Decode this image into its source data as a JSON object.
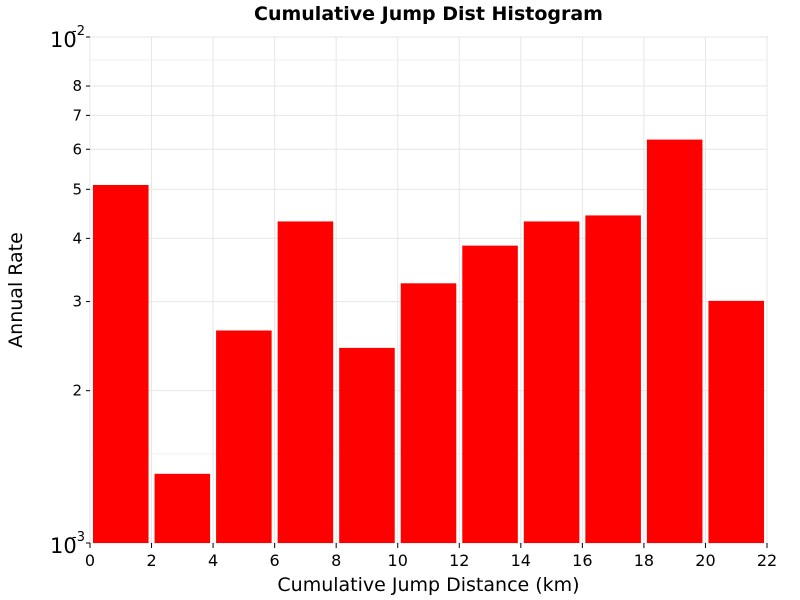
{
  "chart_data": {
    "type": "bar",
    "title": "Cumulative Jump Dist Histogram",
    "xlabel": "Cumulative Jump Distance (km)",
    "ylabel": "Annual Rate",
    "x_scale": "linear",
    "y_scale": "log",
    "xlim": [
      0,
      22
    ],
    "ylim": [
      0.001,
      0.01
    ],
    "x_ticks": [
      "0",
      "2",
      "4",
      "6",
      "8",
      "10",
      "12",
      "14",
      "16",
      "18",
      "20",
      "22"
    ],
    "y_ticks": [
      {
        "value": 0.001,
        "base": "10",
        "exp": "-3"
      },
      {
        "value": 0.002,
        "label": "2"
      },
      {
        "value": 0.003,
        "label": "3"
      },
      {
        "value": 0.004,
        "label": "4"
      },
      {
        "value": 0.005,
        "label": "5"
      },
      {
        "value": 0.006,
        "label": "6"
      },
      {
        "value": 0.007,
        "label": "7"
      },
      {
        "value": 0.008,
        "label": "8"
      },
      {
        "value": 0.01,
        "base": "10",
        "exp": "-2"
      }
    ],
    "bin_width": 2,
    "bars": [
      {
        "x_start": 0,
        "x_end": 2,
        "value": 0.0051
      },
      {
        "x_start": 2,
        "x_end": 4,
        "value": 0.00137
      },
      {
        "x_start": 4,
        "x_end": 6,
        "value": 0.00263
      },
      {
        "x_start": 6,
        "x_end": 8,
        "value": 0.00432
      },
      {
        "x_start": 8,
        "x_end": 10,
        "value": 0.00243
      },
      {
        "x_start": 10,
        "x_end": 12,
        "value": 0.00326
      },
      {
        "x_start": 12,
        "x_end": 14,
        "value": 0.00387
      },
      {
        "x_start": 14,
        "x_end": 16,
        "value": 0.00432
      },
      {
        "x_start": 16,
        "x_end": 18,
        "value": 0.00444
      },
      {
        "x_start": 18,
        "x_end": 20,
        "value": 0.00627
      },
      {
        "x_start": 20,
        "x_end": 22,
        "value": 0.00301
      }
    ],
    "bar_color": "#ff0000",
    "grid": true,
    "legend": "none"
  }
}
